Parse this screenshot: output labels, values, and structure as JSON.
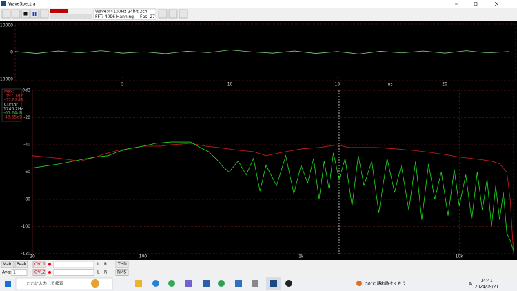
{
  "window": {
    "title": "WaveSpectra"
  },
  "toolbar": {
    "wave": "Wave:44100Hz 24bit 2ch",
    "fft": "FFT: 4096 Hanning",
    "fps": "Fps: 27"
  },
  "legend": {
    "max_title": "Max:",
    "max_freq": "397.7Hz",
    "max_db": "-37.82dB",
    "cursor_title": "Cursor",
    "cursor_freq": "1740.2Hz",
    "cursor_db_current": "-65.24dB",
    "cursor_db_max": "-43.65dB"
  },
  "status": {
    "main": "Main",
    "peak": "Peak",
    "ovl1": "OVL1",
    "l1": "L",
    "r1": "R",
    "thd": "THD",
    "avg": "Avg:",
    "avg_value": "1",
    "ovl2": "OVL2",
    "l2": "L",
    "r2": "R",
    "rms": "RMS"
  },
  "taskbar": {
    "search": "ここに入力して検索",
    "weather": "30°C 晴れ時々くもり",
    "ime": "A",
    "time": "14:41",
    "date": "2024/09/21"
  },
  "chart_data": [
    {
      "type": "line",
      "xlabel": "ms",
      "x": [
        0,
        1,
        2,
        3,
        4,
        5,
        6,
        7,
        8,
        9,
        10,
        11,
        12,
        13,
        14,
        15,
        16,
        17,
        18,
        19,
        20,
        21,
        22,
        23
      ],
      "series": [
        {
          "color": "#7fd07f",
          "values": [
            300,
            -400,
            500,
            -200,
            600,
            -300,
            200,
            -500,
            400,
            -100,
            900,
            200,
            -300,
            500,
            -400,
            300,
            -600,
            400,
            -200,
            500,
            -300,
            600,
            -200,
            300
          ]
        }
      ],
      "xlim": [
        0,
        23.3
      ],
      "ylim": [
        -10000,
        10000
      ],
      "xticks": [
        5,
        10,
        15,
        20
      ],
      "yticks": [
        10000,
        0,
        -10000
      ]
    },
    {
      "type": "line",
      "xlog": true,
      "grid": true,
      "series": [
        {
          "color": "#d02020",
          "x": [
            20,
            30,
            40,
            50,
            60,
            70,
            80,
            100,
            130,
            150,
            200,
            250,
            300,
            400,
            500,
            600,
            800,
            1000,
            1300,
            1700,
            2000,
            3000,
            4000,
            5000,
            6000,
            8000,
            10000,
            12000,
            14000,
            16000,
            18000,
            20000,
            21000,
            22050
          ],
          "values": [
            -48,
            -50,
            -52,
            -49,
            -46,
            -44,
            -43,
            -41,
            -41,
            -40,
            -39,
            -41,
            -42,
            -44,
            -45,
            -48,
            -45,
            -43,
            -42,
            -40,
            -42,
            -42,
            -43,
            -44,
            -45,
            -47,
            -49,
            -50,
            -51,
            -52,
            -54,
            -60,
            -80,
            -120
          ]
        },
        {
          "color": "#20e020",
          "x": [
            20,
            30,
            40,
            50,
            60,
            70,
            80,
            100,
            120,
            150,
            200,
            230,
            260,
            300,
            320,
            350,
            400,
            450,
            500,
            550,
            600,
            700,
            800,
            900,
            1000,
            1100,
            1200,
            1300,
            1400,
            1500,
            1600,
            1740.2,
            1900,
            2100,
            2300,
            2500,
            2800,
            3100,
            3500,
            3900,
            4300,
            4800,
            5300,
            5800,
            6400,
            7000,
            7700,
            8500,
            9300,
            10000,
            11000,
            12000,
            13000,
            14000,
            15000,
            16000,
            17000,
            18000,
            19000,
            20000,
            21000,
            22050
          ],
          "values": [
            -57,
            -54,
            -51,
            -49,
            -48,
            -45,
            -43,
            -41,
            -39,
            -38,
            -38,
            -42,
            -45,
            -52,
            -56,
            -60,
            -52,
            -62,
            -50,
            -74,
            -55,
            -70,
            -48,
            -76,
            -55,
            -68,
            -50,
            -80,
            -52,
            -72,
            -46,
            -65,
            -50,
            -85,
            -48,
            -70,
            -52,
            -90,
            -50,
            -75,
            -55,
            -88,
            -52,
            -95,
            -54,
            -80,
            -60,
            -92,
            -58,
            -85,
            -62,
            -95,
            -60,
            -88,
            -65,
            -100,
            -70,
            -95,
            -75,
            -105,
            -110,
            -118
          ]
        }
      ],
      "cursor": 1740.2,
      "xlim": [
        20,
        22050
      ],
      "ylim": [
        -120,
        0
      ],
      "xticks": [
        20,
        100,
        {
          "value": 1000,
          "label": "1k"
        },
        {
          "value": 10000,
          "label": "10k"
        }
      ],
      "yticks": [
        {
          "value": 0,
          "label": "0dB"
        },
        -20,
        -40,
        -60,
        -80,
        -100,
        -120
      ]
    }
  ]
}
